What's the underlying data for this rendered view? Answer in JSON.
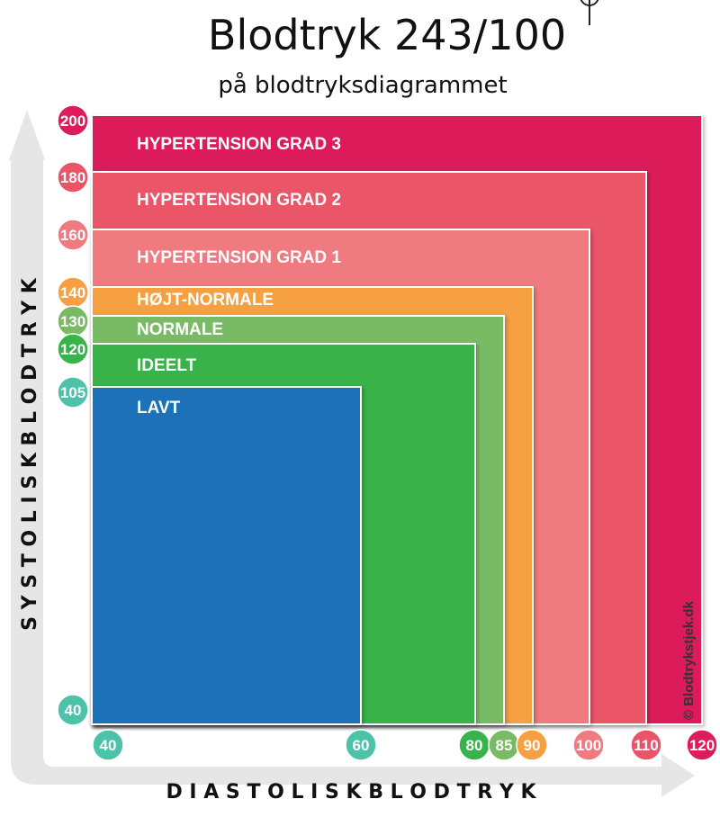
{
  "title": "Blodtryk 243/100",
  "subtitle": "på blodtryksdiagrammet",
  "credit": "© Blodtrykstjek.dk",
  "chart_data": {
    "type": "area",
    "xlabel": "D I A S T O L I S K   B L O D T R Y K",
    "ylabel": "S Y S T O L I S K   B L O D T R Y K",
    "xlim": [
      40,
      120
    ],
    "ylim": [
      40,
      200
    ],
    "zones": [
      {
        "label": "HYPERTENSION GRAD 3",
        "x_max": 120,
        "y_max": 200,
        "color": "#dc1d5a"
      },
      {
        "label": "HYPERTENSION GRAD 2",
        "x_max": 110,
        "y_max": 180,
        "color": "#ea5468"
      },
      {
        "label": "HYPERTENSION GRAD 1",
        "x_max": 100,
        "y_max": 160,
        "color": "#ef7a80"
      },
      {
        "label": "HØJT-NORMALE",
        "x_max": 90,
        "y_max": 140,
        "color": "#f6a043"
      },
      {
        "label": "NORMALE",
        "x_max": 85,
        "y_max": 130,
        "color": "#79bb65"
      },
      {
        "label": "IDEELT",
        "x_max": 80,
        "y_max": 120,
        "color": "#38b24a"
      },
      {
        "label": "LAVT",
        "x_max": 60,
        "y_max": 105,
        "color": "#1c71b9"
      }
    ],
    "y_ticks": [
      {
        "value": 200,
        "label": "200",
        "color": "#dc1d5a"
      },
      {
        "value": 180,
        "label": "180",
        "color": "#ea5468"
      },
      {
        "value": 160,
        "label": "160",
        "color": "#ef7a80"
      },
      {
        "value": 140,
        "label": "140",
        "color": "#f6a043"
      },
      {
        "value": 130,
        "label": "130",
        "color": "#79bb65"
      },
      {
        "value": 120,
        "label": "120",
        "color": "#38b24a"
      },
      {
        "value": 105,
        "label": "105",
        "color": "#4cc2a9"
      },
      {
        "value": 40,
        "label": "40",
        "color": "#4cc2a9"
      }
    ],
    "x_ticks": [
      {
        "value": 40,
        "label": "40",
        "color": "#4cc2a9"
      },
      {
        "value": 60,
        "label": "60",
        "color": "#4cc2a9"
      },
      {
        "value": 80,
        "label": "80",
        "color": "#38b24a"
      },
      {
        "value": 85,
        "label": "85",
        "color": "#79bb65"
      },
      {
        "value": 90,
        "label": "90",
        "color": "#f6a043"
      },
      {
        "value": 100,
        "label": "100",
        "color": "#ef7a80"
      },
      {
        "value": 110,
        "label": "110",
        "color": "#ea5468"
      },
      {
        "value": 120,
        "label": "120",
        "color": "#dc1d5a"
      }
    ],
    "marker": {
      "systolic": 243,
      "diastolic": 100
    }
  }
}
